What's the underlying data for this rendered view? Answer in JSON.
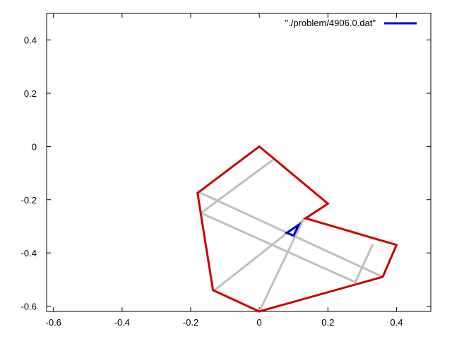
{
  "chart_data": {
    "type": "line",
    "title": "",
    "xlabel": "",
    "ylabel": "",
    "xlim": [
      -0.62,
      0.5
    ],
    "ylim": [
      -0.62,
      0.5
    ],
    "grid": false,
    "legend_position": "top-right",
    "x_ticks": [
      {
        "value": -0.6,
        "label": "-0.6"
      },
      {
        "value": -0.4,
        "label": "-0.4"
      },
      {
        "value": -0.2,
        "label": "-0.2"
      },
      {
        "value": 0,
        "label": "0"
      },
      {
        "value": 0.2,
        "label": "0.2"
      },
      {
        "value": 0.4,
        "label": "0.4"
      }
    ],
    "y_ticks": [
      {
        "value": 0.4,
        "label": "0.4"
      },
      {
        "value": 0.2,
        "label": "0.2"
      },
      {
        "value": 0,
        "label": "0"
      },
      {
        "value": -0.2,
        "label": "-0.2"
      },
      {
        "value": -0.4,
        "label": "-0.4"
      },
      {
        "value": -0.6,
        "label": "-0.6"
      }
    ],
    "legend": {
      "label": "\"./problem/4906.0.dat\"",
      "color": "#0000cc"
    },
    "series": [
      {
        "color": "#cc0000",
        "closed": true,
        "points": [
          [
            0.0,
            0.0
          ],
          [
            0.2,
            -0.215
          ],
          [
            0.135,
            -0.27
          ],
          [
            0.4,
            -0.37
          ],
          [
            0.36,
            -0.49
          ],
          [
            0.0,
            -0.62
          ],
          [
            -0.135,
            -0.54
          ],
          [
            -0.18,
            -0.175
          ]
        ]
      },
      {
        "color": "#0000cc",
        "closed": true,
        "points": [
          [
            0.115,
            -0.295
          ],
          [
            0.08,
            -0.325
          ],
          [
            0.1,
            -0.335
          ]
        ]
      },
      {
        "color": "#c0c0c0",
        "closed": false,
        "segments": [
          [
            [
              0.04,
              -0.05
            ],
            [
              -0.17,
              -0.25
            ]
          ],
          [
            [
              -0.17,
              -0.175
            ],
            [
              0.36,
              -0.49
            ]
          ],
          [
            [
              -0.17,
              -0.25
            ],
            [
              0.28,
              -0.51
            ]
          ],
          [
            [
              0.0,
              -0.62
            ],
            [
              0.13,
              -0.27
            ]
          ],
          [
            [
              -0.13,
              -0.54
            ],
            [
              0.135,
              -0.27
            ]
          ],
          [
            [
              0.33,
              -0.37
            ],
            [
              0.28,
              -0.51
            ]
          ]
        ]
      }
    ]
  }
}
